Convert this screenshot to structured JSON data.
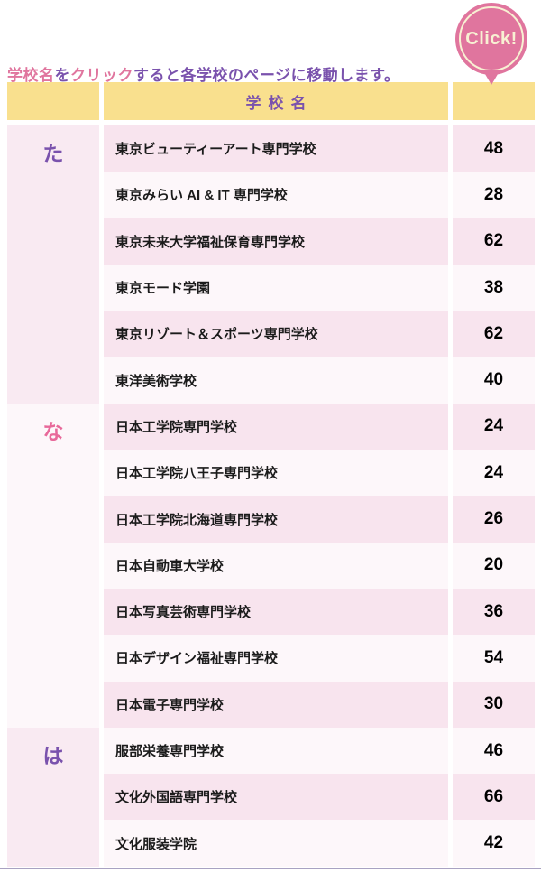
{
  "colors": {
    "accent_pink": "#e0759e",
    "accent_purple": "#7a52ad",
    "header_yellow": "#f9e08e",
    "row_pink": "#f8e4ee",
    "row_light": "#fdf7fa",
    "badge_cream": "#f8f1d3",
    "index_letter_pink": "#e8699a",
    "bottom_line": "#a9a2c2"
  },
  "intro": {
    "segments": [
      {
        "text": "学校名",
        "color": "pink"
      },
      {
        "text": "を",
        "color": "purple"
      },
      {
        "text": "クリック",
        "color": "pink"
      },
      {
        "text": "すると各学校のページに移動します。",
        "color": "purple"
      }
    ]
  },
  "badge": {
    "label": "Click!"
  },
  "table": {
    "header": {
      "name_label": "学校名"
    },
    "sections": [
      {
        "index_label": "た",
        "index_color": "purple",
        "block_theme": "pink",
        "schools": [
          {
            "name": "東京ビューティーアート専門学校",
            "page": "48"
          },
          {
            "name": "東京みらい AI & IT 専門学校",
            "page": "28"
          },
          {
            "name": "東京未来大学福祉保育専門学校",
            "page": "62"
          },
          {
            "name": "東京モード学園",
            "page": "38"
          },
          {
            "name": "東京リゾート＆スポーツ専門学校",
            "page": "62"
          },
          {
            "name": "東洋美術学校",
            "page": "40"
          }
        ]
      },
      {
        "index_label": "な",
        "index_color": "pink",
        "block_theme": "light",
        "schools": [
          {
            "name": "日本工学院専門学校",
            "page": "24"
          },
          {
            "name": "日本工学院八王子専門学校",
            "page": "24"
          },
          {
            "name": "日本工学院北海道専門学校",
            "page": "26"
          },
          {
            "name": "日本自動車大学校",
            "page": "20"
          },
          {
            "name": "日本写真芸術専門学校",
            "page": "36"
          },
          {
            "name": "日本デザイン福祉専門学校",
            "page": "54"
          },
          {
            "name": "日本電子専門学校",
            "page": "30"
          }
        ]
      },
      {
        "index_label": "は",
        "index_color": "purple",
        "block_theme": "pink",
        "schools": [
          {
            "name": "服部栄養専門学校",
            "page": "46"
          },
          {
            "name": "文化外国語専門学校",
            "page": "66"
          },
          {
            "name": "文化服装学院",
            "page": "42"
          }
        ]
      }
    ]
  }
}
